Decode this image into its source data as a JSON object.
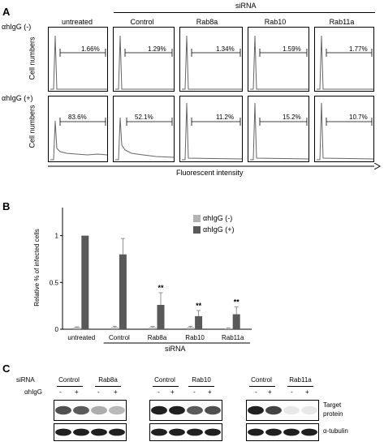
{
  "panel_a": {
    "letter": "A",
    "sirna_label": "siRNA",
    "columns": [
      "untreated",
      "Control",
      "Rab8a",
      "Rab10",
      "Rab11a"
    ],
    "rows": [
      {
        "label": "αhIgG (-)",
        "ylabel": "Cell numbers",
        "percents": [
          "1.66%",
          "1.29%",
          "1.34%",
          "1.59%",
          "1.77%"
        ]
      },
      {
        "label": "αhIgG (+)",
        "ylabel": "Cell numbers",
        "percents": [
          "83.6%",
          "52.1%",
          "11.2%",
          "15.2%",
          "10.7%"
        ]
      }
    ],
    "xlabel": "Fluorescent intensity"
  },
  "panel_b": {
    "letter": "B",
    "sirna_label": "siRNA",
    "significance": "**"
  },
  "chart_data": {
    "type": "bar",
    "categories": [
      "untreated",
      "Control",
      "Rab8a",
      "Rab10",
      "Rab11a"
    ],
    "series": [
      {
        "name": "αhIgG (-)",
        "color": "#b3b3b3",
        "values": [
          0.02,
          0.02,
          0.02,
          0.02,
          0.01
        ],
        "errors": [
          0.005,
          0.01,
          0.01,
          0.01,
          0.005
        ]
      },
      {
        "name": "αhIgG (+)",
        "color": "#595959",
        "values": [
          1.0,
          0.8,
          0.26,
          0.14,
          0.16
        ],
        "errors": [
          0,
          0.17,
          0.13,
          0.06,
          0.08
        ]
      }
    ],
    "ylabel": "Relative % of infected cells",
    "yticks": [
      "0",
      "0.5",
      "1"
    ],
    "ylim": [
      0,
      1.3
    ],
    "significant": [
      false,
      false,
      true,
      true,
      true
    ],
    "legend": "top-right"
  },
  "panel_c": {
    "letter": "C",
    "sirna_label": "siRNA",
    "ahigg_label": "αhIgG",
    "blots": [
      {
        "groups": [
          "Control",
          "Rab8a"
        ],
        "signs": [
          "-",
          "+",
          "-",
          "+"
        ],
        "target": [
          0.75,
          0.7,
          0.35,
          0.3
        ],
        "tubulin": [
          0.95,
          0.95,
          0.95,
          0.95
        ]
      },
      {
        "groups": [
          "Control",
          "Rab10"
        ],
        "signs": [
          "-",
          "+",
          "-",
          "+"
        ],
        "target": [
          0.95,
          0.95,
          0.7,
          0.75
        ],
        "tubulin": [
          0.95,
          0.95,
          0.95,
          0.95
        ]
      },
      {
        "groups": [
          "Control",
          "Rab11a"
        ],
        "signs": [
          "-",
          "+",
          "-",
          "+"
        ],
        "target": [
          0.95,
          0.8,
          0.1,
          0.1
        ],
        "tubulin": [
          0.95,
          0.95,
          0.95,
          0.95
        ]
      }
    ],
    "target_label_1": "Target",
    "target_label_2": "protein",
    "tubulin_label": "α-tubulin"
  }
}
